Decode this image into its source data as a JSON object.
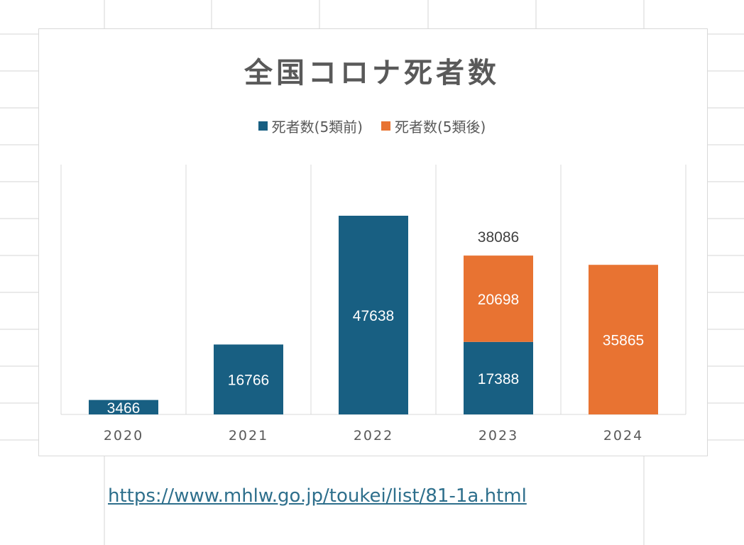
{
  "chart_data": {
    "type": "bar",
    "stacked": true,
    "title": "全国コロナ死者数",
    "categories": [
      "2020",
      "2021",
      "2022",
      "2023",
      "2024"
    ],
    "series": [
      {
        "name": "死者数(5類前)",
        "color": "#185f82",
        "values": [
          3466,
          16766,
          47638,
          17388,
          0
        ],
        "labels": [
          "3466",
          "16766",
          "47638",
          "17388",
          ""
        ]
      },
      {
        "name": "死者数(5類後)",
        "color": "#e87332",
        "values": [
          0,
          0,
          0,
          20698,
          35865
        ],
        "labels": [
          "",
          "",
          "",
          "20698",
          "35865"
        ]
      }
    ],
    "totals": [
      "",
      "",
      "",
      "38086",
      ""
    ],
    "ylim": [
      0,
      52000
    ],
    "legend_position": "top",
    "grid": "vertical separators only"
  },
  "source": {
    "url_text": "https://www.mhlw.go.jp/toukei/list/81-1a.html"
  }
}
